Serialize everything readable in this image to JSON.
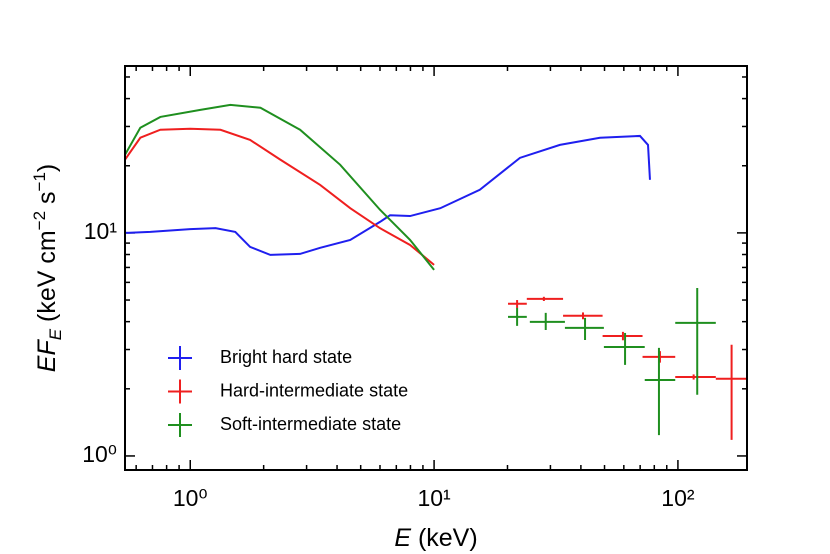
{
  "chart_data": {
    "type": "loglog-spectrum",
    "xlabel": [
      "E",
      " (keV)"
    ],
    "ylabel": [
      "EF",
      "E",
      " (keV cm",
      "−2",
      " s",
      "−1",
      ")"
    ],
    "xscale": "log",
    "yscale": "log",
    "xlim": [
      0.54,
      192
    ],
    "ylim": [
      0.865,
      56
    ],
    "xticks": [
      {
        "value": 1,
        "label": "10⁰"
      },
      {
        "value": 10,
        "label": "10¹"
      },
      {
        "value": 100,
        "label": "10²"
      }
    ],
    "yticks": [
      {
        "value": 1,
        "label": "10⁰"
      },
      {
        "value": 10,
        "label": "10¹"
      }
    ],
    "xminor": [
      0.6,
      0.7,
      0.8,
      0.9,
      2,
      3,
      4,
      5,
      6,
      7,
      8,
      9,
      20,
      30,
      40,
      50,
      60,
      70,
      80,
      90
    ],
    "yminor": [
      2,
      3,
      4,
      5,
      6,
      7,
      8,
      9,
      20,
      30,
      40,
      50
    ],
    "legend": "lower left",
    "series": [
      {
        "name": "Bright hard state",
        "color": "#1f1fef",
        "x": [
          0.54,
          0.686,
          1.0,
          1.27,
          1.53,
          1.76,
          2.13,
          2.82,
          3.41,
          4.53,
          6.0,
          6.6,
          7.97,
          10.6,
          15.4,
          22.5,
          32.8,
          47.9,
          69.9,
          75.4,
          76.8
        ],
        "values": [
          10.0,
          10.1,
          10.4,
          10.5,
          10.1,
          8.65,
          7.97,
          8.05,
          8.57,
          9.3,
          11.2,
          12.0,
          11.9,
          12.9,
          15.6,
          21.7,
          24.8,
          26.7,
          27.2,
          24.8,
          17.3
        ],
        "points": {
          "x": [],
          "xlo": [],
          "xhi": [],
          "values": [],
          "ylo": [],
          "yhi": []
        }
      },
      {
        "name": "Hard-intermediate state",
        "color": "#ef1f1f",
        "x": [
          0.54,
          0.624,
          0.754,
          1.0,
          1.33,
          1.76,
          2.34,
          3.41,
          4.53,
          6.0,
          7.97,
          10.0
        ],
        "values": [
          21.3,
          26.7,
          29.0,
          29.3,
          29.0,
          26.1,
          21.3,
          16.4,
          12.9,
          10.5,
          8.83,
          7.19
        ],
        "points": {
          "x": [
            21.9,
            28.2,
            40.8,
            59.5,
            84.4,
            116,
            166
          ],
          "xlo": [
            20.1,
            24.0,
            33.8,
            49.1,
            71.6,
            97.5,
            143
          ],
          "xhi": [
            24.0,
            33.8,
            49.1,
            71.6,
            97.5,
            143,
            192
          ],
          "values": [
            4.81,
            5.06,
            4.25,
            3.45,
            2.78,
            2.26,
            2.22
          ],
          "ylo": [
            4.6,
            4.95,
            4.1,
            3.3,
            2.62,
            2.2,
            1.18
          ],
          "yhi": [
            5.0,
            5.17,
            4.4,
            3.6,
            2.95,
            2.32,
            3.15
          ]
        }
      },
      {
        "name": "Soft-intermediate state",
        "color": "#1f8f1f",
        "x": [
          0.54,
          0.624,
          0.754,
          1.1,
          1.46,
          1.94,
          2.82,
          4.12,
          6.0,
          7.97,
          10.0
        ],
        "values": [
          22.4,
          29.6,
          33.1,
          35.6,
          37.5,
          36.4,
          29.0,
          20.2,
          12.7,
          9.3,
          6.83
        ],
        "points": {
          "x": [
            21.9,
            28.7,
            41.6,
            60.7,
            83.6,
            120
          ],
          "xlo": [
            20.1,
            24.7,
            34.4,
            49.7,
            73.1,
            97.5
          ],
          "xhi": [
            24.0,
            34.4,
            49.7,
            73.1,
            97.5,
            143
          ],
          "values": [
            4.2,
            3.99,
            3.75,
            3.08,
            2.19,
            3.95
          ],
          "ylo": [
            3.83,
            3.67,
            3.31,
            2.56,
            1.24,
            1.88
          ],
          "yhi": [
            4.61,
            4.38,
            4.16,
            3.56,
            3.05,
            5.66
          ]
        }
      }
    ]
  }
}
